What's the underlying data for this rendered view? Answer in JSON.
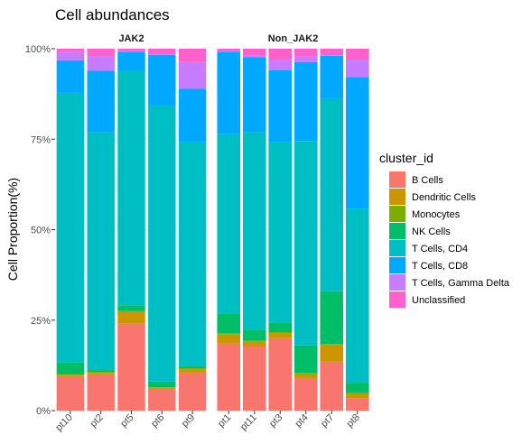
{
  "chart_data": {
    "type": "bar",
    "stacked": true,
    "percent": true,
    "title": "Cell abundances",
    "ylabel": "Cell Proportion(%)",
    "xlabel": "",
    "ylim": [
      0,
      100
    ],
    "y_ticks": [
      "0%",
      "25%",
      "50%",
      "75%",
      "100%"
    ],
    "grid": true,
    "legend": {
      "title": "cluster_id",
      "position": "right"
    },
    "clusters": [
      {
        "name": "B Cells",
        "color": "#F8766D"
      },
      {
        "name": "Dendritic Cells",
        "color": "#CD9600"
      },
      {
        "name": "Monocytes",
        "color": "#7CAE00"
      },
      {
        "name": "NK Cells",
        "color": "#00BE67"
      },
      {
        "name": "T Cells, CD4",
        "color": "#00BFC4"
      },
      {
        "name": "T Cells, CD8",
        "color": "#00A9FF"
      },
      {
        "name": "T Cells, Gamma Delta",
        "color": "#C77CFF"
      },
      {
        "name": "Unclassified",
        "color": "#FF61CC"
      }
    ],
    "facets": [
      {
        "label": "JAK2",
        "samples": [
          {
            "id": "pt10",
            "values": [
              9.5,
              0.3,
              0.3,
              3.2,
              74.5,
              9.0,
              2.4,
              0.8
            ]
          },
          {
            "id": "pt2",
            "values": [
              10.0,
              0.4,
              0.3,
              0.5,
              65.7,
              17.0,
              4.0,
              2.1
            ]
          },
          {
            "id": "pt5",
            "values": [
              24.0,
              3.2,
              0.3,
              1.6,
              64.8,
              5.3,
              0.2,
              0.6
            ]
          },
          {
            "id": "pt6",
            "values": [
              6.0,
              0.3,
              0.1,
              1.6,
              76.3,
              14.0,
              0.2,
              1.5
            ]
          },
          {
            "id": "pt9",
            "values": [
              10.5,
              0.8,
              0.4,
              0.5,
              62.1,
              14.6,
              7.4,
              3.7
            ]
          }
        ]
      },
      {
        "label": "Non_JAK2",
        "samples": [
          {
            "id": "pt1",
            "values": [
              18.5,
              2.5,
              0.4,
              5.5,
              49.5,
              22.8,
              0.2,
              0.6
            ]
          },
          {
            "id": "pt11",
            "values": [
              17.7,
              1.3,
              0.3,
              2.9,
              54.7,
              20.8,
              0.4,
              1.9
            ]
          },
          {
            "id": "pt3",
            "values": [
              20.0,
              1.3,
              0.4,
              2.7,
              49.7,
              20.0,
              2.8,
              3.1
            ]
          },
          {
            "id": "pt4",
            "values": [
              9.0,
              1.0,
              0.4,
              7.6,
              56.5,
              21.8,
              1.6,
              2.1
            ]
          },
          {
            "id": "pt7",
            "values": [
              13.5,
              4.6,
              0.3,
              14.6,
              53.3,
              11.8,
              0.1,
              1.8
            ]
          },
          {
            "id": "pt8",
            "values": [
              3.3,
              1.3,
              0.4,
              2.7,
              48.0,
              36.5,
              4.7,
              3.1
            ]
          }
        ]
      }
    ]
  }
}
